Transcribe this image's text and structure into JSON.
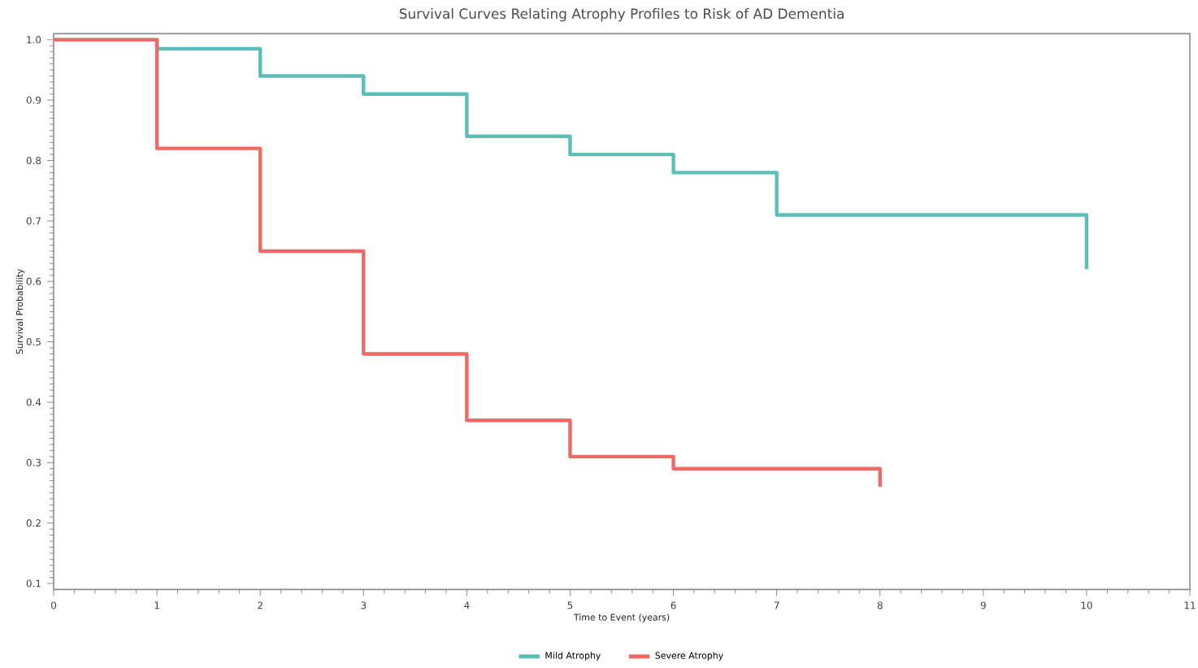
{
  "chart_data": {
    "type": "step",
    "title": "Survival Curves Relating Atrophy Profiles to Risk of AD Dementia",
    "xlabel": "Time to Event (years)",
    "ylabel": "Survival Probability",
    "series": [
      {
        "name": "Mild Atrophy",
        "color": "#5bbfb9",
        "x": [
          0,
          1,
          2,
          3,
          4,
          5,
          6,
          7,
          10
        ],
        "values": [
          1.0,
          0.985,
          0.94,
          0.91,
          0.84,
          0.81,
          0.78,
          0.71,
          0.62
        ]
      },
      {
        "name": "Severe Atrophy",
        "color": "#ee6a64",
        "x": [
          0,
          1,
          2,
          3,
          4,
          5,
          6,
          8
        ],
        "values": [
          1.0,
          0.82,
          0.65,
          0.48,
          0.37,
          0.31,
          0.29,
          0.26
        ]
      }
    ],
    "xlim": [
      0,
      11
    ],
    "ylim": [
      0.09,
      1.01
    ],
    "xticks": [
      0,
      1,
      2,
      3,
      4,
      5,
      6,
      7,
      8,
      9,
      10,
      11
    ],
    "yticks": [
      0.1,
      0.2,
      0.3,
      0.4,
      0.5,
      0.6,
      0.7,
      0.8,
      0.9,
      {
        "value": 1.0,
        "label": "1.0"
      }
    ],
    "legend": "bottom",
    "grid": false
  }
}
